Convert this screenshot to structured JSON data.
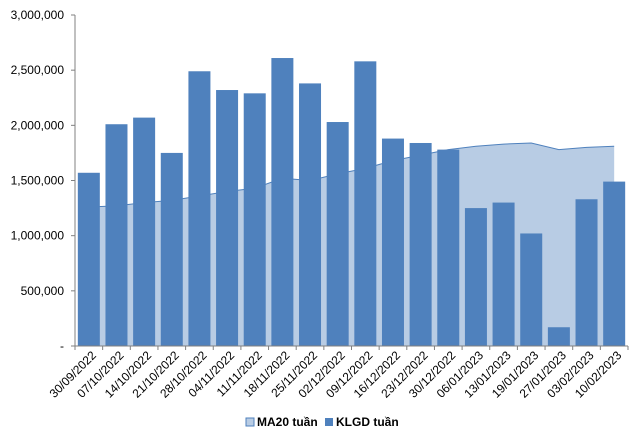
{
  "chart_data": {
    "type": "bar",
    "title": "",
    "xlabel": "",
    "ylabel": "",
    "ylim": [
      0,
      3000000
    ],
    "yticks": [
      0,
      500000,
      1000000,
      1500000,
      2000000,
      2500000,
      3000000
    ],
    "ytick_labels": [
      "-",
      "500,000",
      "1,000,000",
      "1,500,000",
      "2,000,000",
      "2,500,000",
      "3,000,000"
    ],
    "grid": false,
    "legend_position": "bottom",
    "categories": [
      "30/09/2022",
      "07/10/2022",
      "14/10/2022",
      "21/10/2022",
      "28/10/2022",
      "04/11/2022",
      "11/11/2022",
      "18/11/2022",
      "25/11/2022",
      "02/12/2022",
      "09/12/2022",
      "16/12/2022",
      "23/12/2022",
      "30/12/2022",
      "06/01/2023",
      "13/01/2023",
      "19/01/2023",
      "27/01/2023",
      "03/02/2023",
      "10/02/2023"
    ],
    "series": [
      {
        "name": "MA20 tuần",
        "kind": "area",
        "color": "#b8cce4",
        "edge_color": "#4f81bd",
        "values": [
          1260000,
          1270000,
          1300000,
          1320000,
          1360000,
          1400000,
          1430000,
          1520000,
          1500000,
          1560000,
          1610000,
          1680000,
          1730000,
          1780000,
          1810000,
          1830000,
          1840000,
          1780000,
          1800000,
          1810000
        ]
      },
      {
        "name": "KLGD tuần",
        "kind": "bar",
        "color": "#4f81bd",
        "values": [
          1570000,
          2010000,
          2070000,
          1750000,
          2490000,
          2320000,
          2290000,
          2610000,
          2380000,
          2030000,
          2580000,
          1880000,
          1840000,
          1780000,
          1250000,
          1300000,
          1020000,
          170000,
          1330000,
          1490000
        ]
      }
    ]
  }
}
